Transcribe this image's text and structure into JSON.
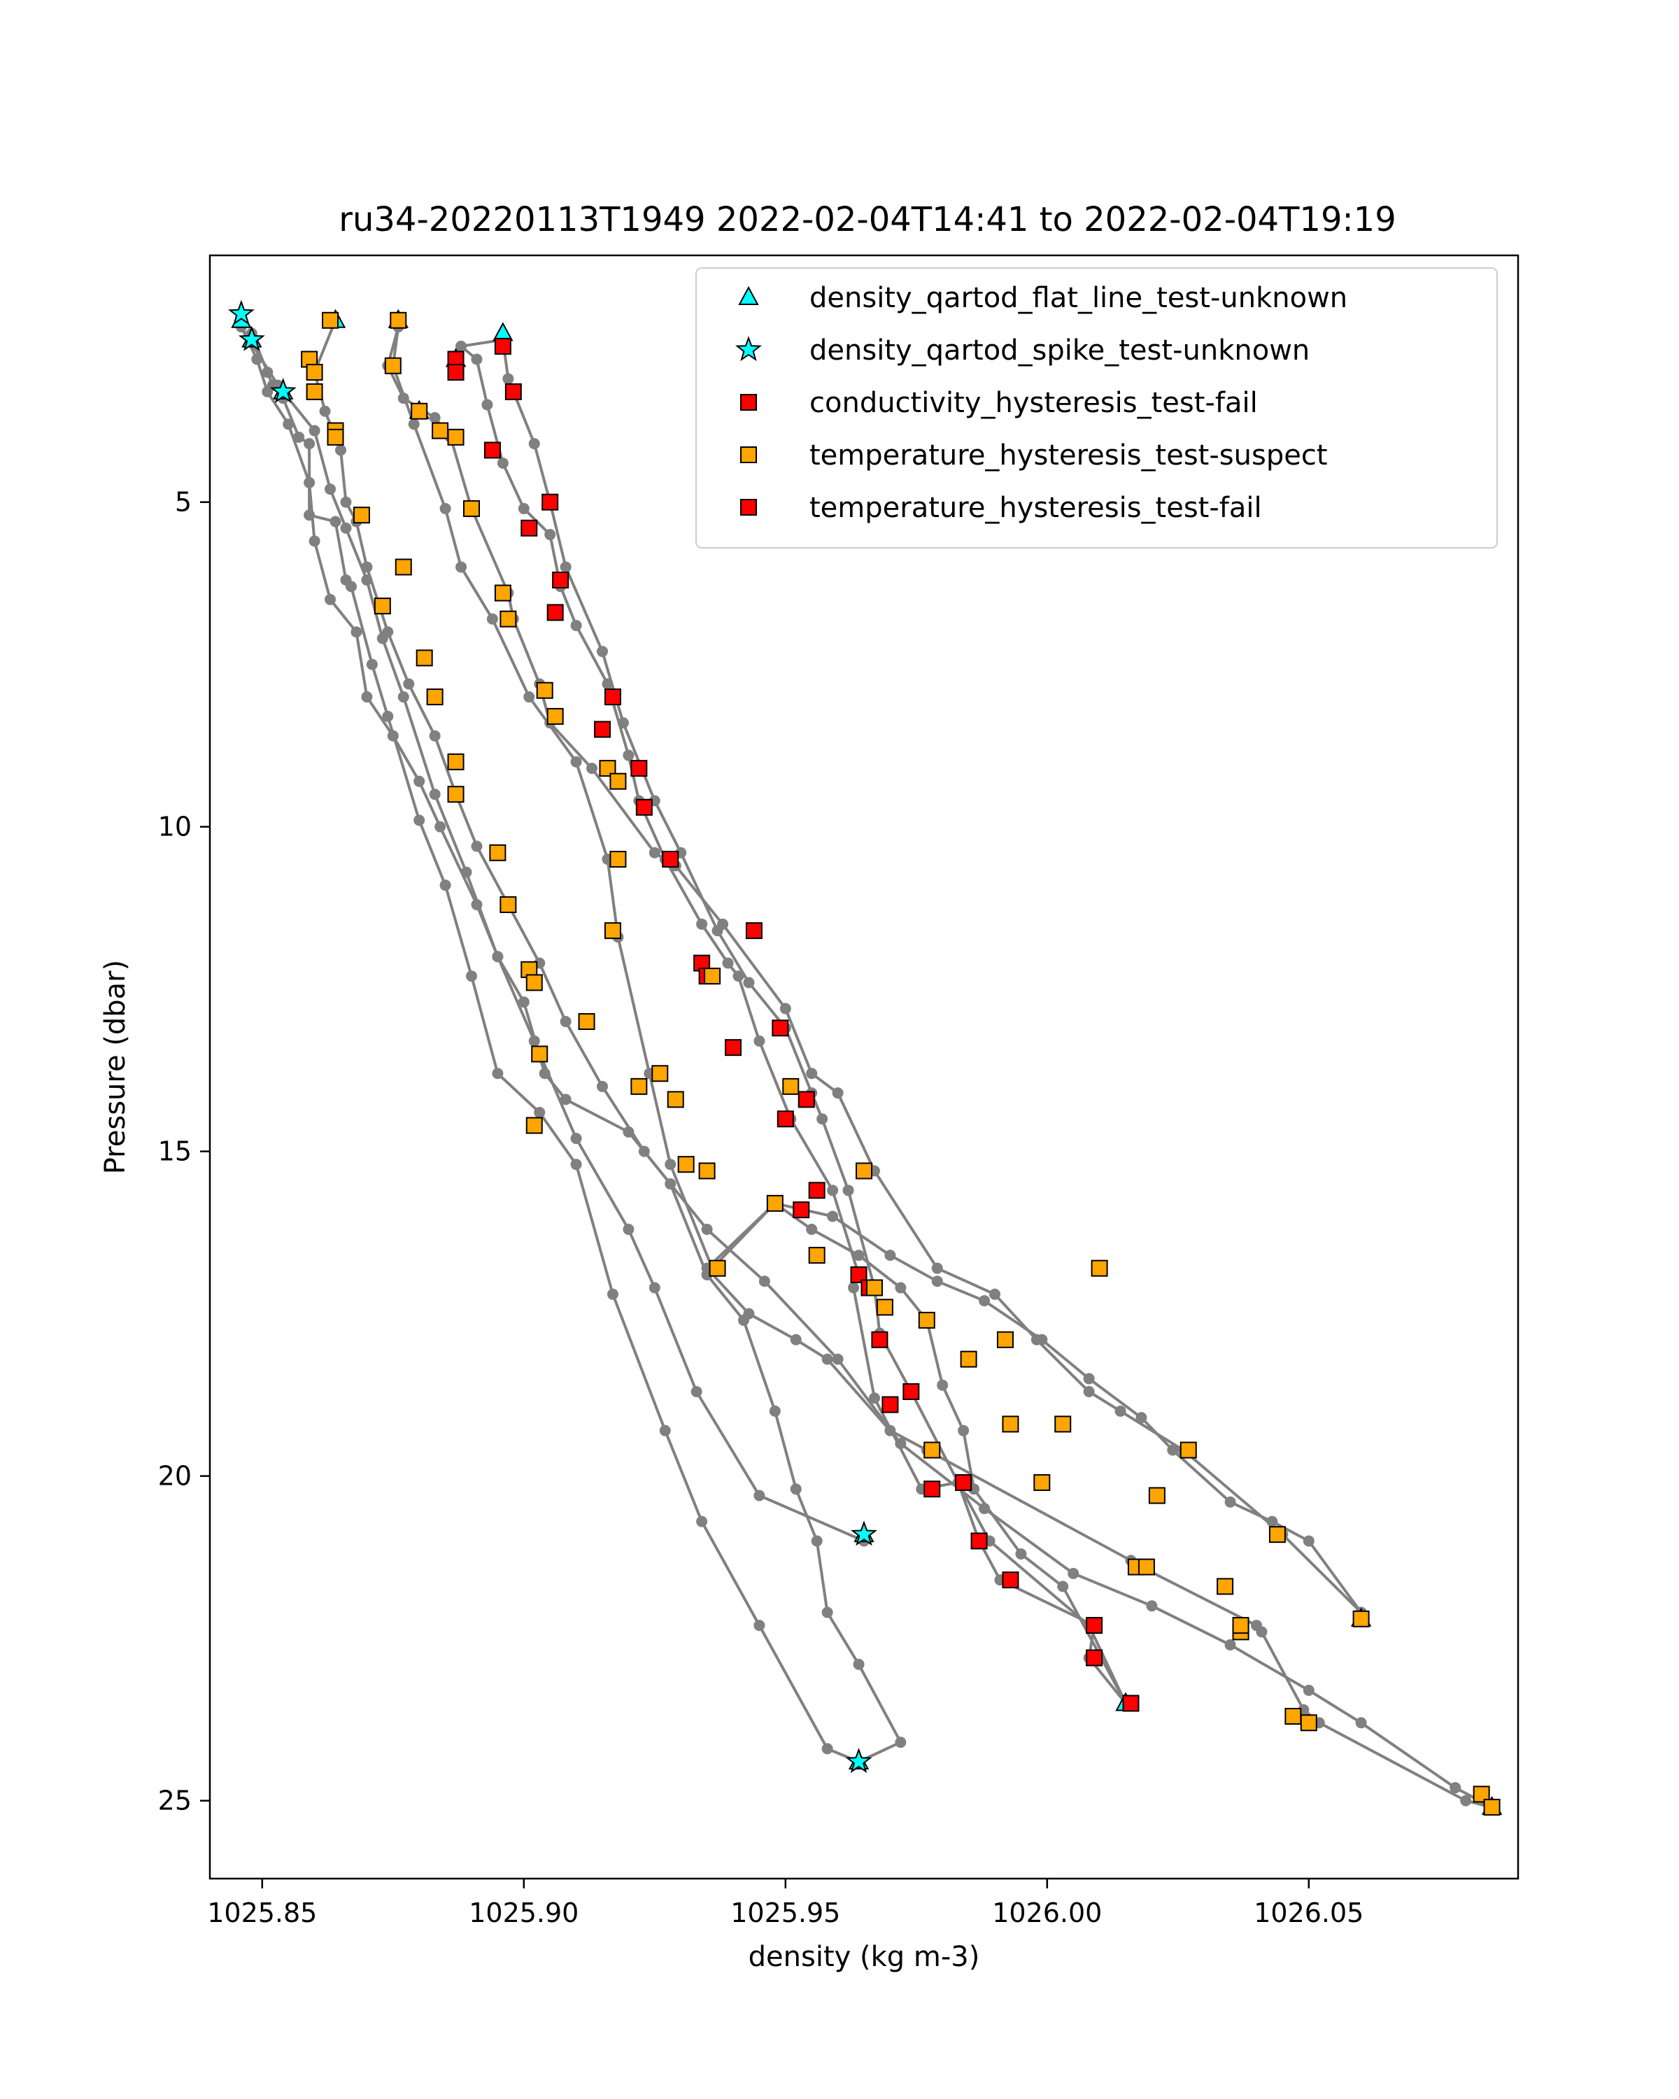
{
  "chart_data": {
    "type": "scatter",
    "title": "ru34-20220113T1949 2022-02-04T14:41 to 2022-02-04T19:19",
    "xlabel": "density (kg m-3)",
    "ylabel": "Pressure (dbar)",
    "xlim": [
      1025.84,
      1026.09
    ],
    "ylim": [
      26.2,
      1.2
    ],
    "y_inverted": true,
    "xticks": [
      1025.85,
      1025.9,
      1025.95,
      1026.0,
      1026.05
    ],
    "xtick_labels": [
      "1025.85",
      "1025.90",
      "1025.95",
      "1026.00",
      "1026.05"
    ],
    "yticks": [
      5,
      10,
      15,
      20,
      25
    ],
    "ytick_labels": [
      "5",
      "10",
      "15",
      "20",
      "25"
    ],
    "grid": false,
    "legend_position": "top-right",
    "line_color": "#808080",
    "profiles": [
      [
        [
          1025.848,
          2.4
        ],
        [
          1025.851,
          3.0
        ],
        [
          1025.852,
          3.2
        ],
        [
          1025.854,
          3.4
        ],
        [
          1025.857,
          4.0
        ],
        [
          1025.859,
          4.1
        ],
        [
          1025.859,
          5.2
        ],
        [
          1025.864,
          5.3
        ],
        [
          1025.866,
          6.2
        ],
        [
          1025.867,
          6.3
        ],
        [
          1025.871,
          7.5
        ],
        [
          1025.874,
          8.3
        ],
        [
          1025.88,
          9.9
        ],
        [
          1025.885,
          10.9
        ],
        [
          1025.89,
          12.3
        ],
        [
          1025.895,
          13.8
        ],
        [
          1025.903,
          14.4
        ],
        [
          1025.91,
          15.2
        ],
        [
          1025.917,
          17.2
        ],
        [
          1025.927,
          19.3
        ],
        [
          1025.934,
          20.7
        ],
        [
          1025.945,
          22.3
        ],
        [
          1025.958,
          24.2
        ],
        [
          1025.964,
          24.4
        ]
      ],
      [
        [
          1025.964,
          24.4
        ],
        [
          1025.972,
          24.1
        ],
        [
          1025.964,
          22.9
        ],
        [
          1025.958,
          22.1
        ],
        [
          1025.956,
          21.0
        ],
        [
          1025.952,
          20.2
        ],
        [
          1025.948,
          19.0
        ],
        [
          1025.942,
          17.6
        ],
        [
          1025.935,
          16.9
        ],
        [
          1025.928,
          15.5
        ],
        [
          1025.92,
          14.7
        ],
        [
          1025.908,
          14.2
        ],
        [
          1025.904,
          13.8
        ],
        [
          1025.9,
          12.7
        ],
        [
          1025.895,
          12.0
        ],
        [
          1025.891,
          11.2
        ],
        [
          1025.884,
          10.0
        ],
        [
          1025.88,
          9.3
        ],
        [
          1025.875,
          8.6
        ],
        [
          1025.87,
          8.0
        ],
        [
          1025.868,
          7.0
        ],
        [
          1025.863,
          6.5
        ],
        [
          1025.86,
          5.6
        ],
        [
          1025.859,
          4.7
        ],
        [
          1025.855,
          3.8
        ],
        [
          1025.851,
          3.3
        ],
        [
          1025.849,
          2.8
        ],
        [
          1025.846,
          2.3
        ]
      ],
      [
        [
          1025.846,
          2.3
        ],
        [
          1025.853,
          3.2
        ],
        [
          1025.86,
          3.9
        ],
        [
          1025.863,
          4.8
        ],
        [
          1025.866,
          5.4
        ],
        [
          1025.87,
          6.2
        ],
        [
          1025.873,
          7.1
        ],
        [
          1025.877,
          8.0
        ],
        [
          1025.883,
          9.5
        ],
        [
          1025.889,
          10.7
        ],
        [
          1025.895,
          12.0
        ],
        [
          1025.902,
          13.3
        ],
        [
          1025.91,
          14.8
        ],
        [
          1025.92,
          16.2
        ],
        [
          1025.925,
          17.1
        ],
        [
          1025.933,
          18.7
        ],
        [
          1025.945,
          20.3
        ],
        [
          1025.965,
          21.0
        ]
      ],
      [
        [
          1025.864,
          2.2
        ],
        [
          1025.86,
          3.0
        ],
        [
          1025.862,
          3.6
        ],
        [
          1025.865,
          4.2
        ],
        [
          1025.866,
          5.0
        ],
        [
          1025.868,
          5.3
        ],
        [
          1025.87,
          6.0
        ],
        [
          1025.874,
          7.0
        ],
        [
          1025.878,
          7.8
        ],
        [
          1025.883,
          8.6
        ],
        [
          1025.887,
          9.5
        ],
        [
          1025.891,
          10.3
        ],
        [
          1025.897,
          11.2
        ],
        [
          1025.903,
          12.1
        ],
        [
          1025.908,
          13.0
        ],
        [
          1025.915,
          14.0
        ],
        [
          1025.923,
          15.0
        ],
        [
          1025.935,
          16.2
        ],
        [
          1025.946,
          17.0
        ],
        [
          1025.96,
          18.2
        ],
        [
          1025.972,
          19.5
        ],
        [
          1025.988,
          20.5
        ],
        [
          1026.005,
          21.5
        ],
        [
          1026.02,
          22.0
        ],
        [
          1026.035,
          22.6
        ],
        [
          1026.05,
          23.3
        ],
        [
          1026.06,
          23.8
        ],
        [
          1026.078,
          24.8
        ],
        [
          1026.085,
          25.1
        ]
      ],
      [
        [
          1026.085,
          25.1
        ],
        [
          1026.08,
          25.0
        ],
        [
          1026.052,
          23.8
        ],
        [
          1026.049,
          23.6
        ],
        [
          1026.041,
          22.4
        ],
        [
          1026.04,
          22.3
        ],
        [
          1026.018,
          21.4
        ],
        [
          1026.016,
          21.3
        ],
        [
          1025.977,
          19.6
        ],
        [
          1025.97,
          19.3
        ],
        [
          1025.958,
          18.2
        ],
        [
          1025.952,
          17.9
        ],
        [
          1025.943,
          17.5
        ],
        [
          1025.935,
          16.8
        ],
        [
          1025.948,
          15.8
        ],
        [
          1025.959,
          16.0
        ],
        [
          1025.97,
          16.6
        ],
        [
          1025.979,
          17.0
        ],
        [
          1025.988,
          17.3
        ],
        [
          1025.999,
          17.9
        ],
        [
          1026.008,
          18.5
        ],
        [
          1026.018,
          19.1
        ],
        [
          1026.024,
          19.6
        ],
        [
          1026.035,
          20.4
        ],
        [
          1026.043,
          20.7
        ],
        [
          1026.05,
          21.0
        ],
        [
          1026.06,
          22.1
        ]
      ],
      [
        [
          1026.06,
          22.1
        ],
        [
          1026.045,
          20.9
        ],
        [
          1026.026,
          19.6
        ],
        [
          1026.014,
          19.0
        ],
        [
          1026.008,
          18.7
        ],
        [
          1025.998,
          17.9
        ],
        [
          1025.99,
          17.2
        ],
        [
          1025.979,
          16.8
        ],
        [
          1025.967,
          15.3
        ],
        [
          1025.96,
          14.1
        ],
        [
          1025.955,
          13.8
        ],
        [
          1025.95,
          12.8
        ],
        [
          1025.938,
          11.5
        ],
        [
          1025.929,
          10.6
        ],
        [
          1025.925,
          10.4
        ],
        [
          1025.913,
          9.1
        ],
        [
          1025.905,
          8.4
        ],
        [
          1025.903,
          7.8
        ],
        [
          1025.898,
          6.8
        ],
        [
          1025.897,
          6.4
        ],
        [
          1025.89,
          5.1
        ],
        [
          1025.886,
          4.0
        ],
        [
          1025.883,
          3.7
        ],
        [
          1025.877,
          3.4
        ],
        [
          1025.874,
          2.9
        ],
        [
          1025.876,
          2.3
        ]
      ],
      [
        [
          1025.876,
          2.3
        ],
        [
          1025.875,
          2.9
        ],
        [
          1025.879,
          3.8
        ],
        [
          1025.885,
          5.1
        ],
        [
          1025.888,
          6.0
        ],
        [
          1025.894,
          6.8
        ],
        [
          1025.901,
          8.0
        ],
        [
          1025.91,
          9.0
        ],
        [
          1025.916,
          10.5
        ],
        [
          1025.918,
          11.7
        ],
        [
          1025.924,
          13.8
        ],
        [
          1025.928,
          15.2
        ],
        [
          1025.936,
          16.8
        ],
        [
          1025.948,
          15.8
        ],
        [
          1025.955,
          16.2
        ],
        [
          1025.964,
          16.6
        ],
        [
          1025.972,
          17.1
        ],
        [
          1025.977,
          17.6
        ],
        [
          1025.98,
          18.6
        ],
        [
          1025.984,
          19.3
        ],
        [
          1025.986,
          20.2
        ],
        [
          1025.995,
          21.2
        ],
        [
          1026.003,
          21.7
        ],
        [
          1026.015,
          23.5
        ]
      ],
      [
        [
          1026.015,
          23.5
        ],
        [
          1026.008,
          22.8
        ],
        [
          1026.009,
          22.3
        ],
        [
          1025.991,
          21.6
        ],
        [
          1025.987,
          21.0
        ],
        [
          1025.983,
          20.1
        ],
        [
          1025.976,
          20.2
        ],
        [
          1025.967,
          18.8
        ],
        [
          1025.963,
          17.1
        ],
        [
          1025.964,
          16.9
        ],
        [
          1025.959,
          15.6
        ],
        [
          1025.951,
          14.5
        ],
        [
          1025.945,
          13.3
        ],
        [
          1025.941,
          12.3
        ],
        [
          1025.939,
          12.1
        ],
        [
          1025.934,
          11.5
        ],
        [
          1025.927,
          10.5
        ],
        [
          1025.922,
          9.6
        ],
        [
          1025.92,
          8.9
        ],
        [
          1025.916,
          7.8
        ],
        [
          1025.91,
          6.9
        ],
        [
          1025.907,
          6.3
        ],
        [
          1025.905,
          5.5
        ],
        [
          1025.9,
          5.1
        ],
        [
          1025.896,
          4.4
        ],
        [
          1025.893,
          3.5
        ],
        [
          1025.891,
          2.8
        ],
        [
          1025.888,
          2.6
        ],
        [
          1025.896,
          2.5
        ]
      ],
      [
        [
          1025.896,
          2.5
        ],
        [
          1025.897,
          3.1
        ],
        [
          1025.902,
          4.1
        ],
        [
          1025.905,
          5.0
        ],
        [
          1025.908,
          6.0
        ],
        [
          1025.915,
          7.3
        ],
        [
          1025.919,
          8.4
        ],
        [
          1025.925,
          9.6
        ],
        [
          1025.93,
          10.4
        ],
        [
          1025.937,
          11.6
        ],
        [
          1025.943,
          12.4
        ],
        [
          1025.95,
          13.1
        ],
        [
          1025.955,
          14.1
        ],
        [
          1025.957,
          14.5
        ],
        [
          1025.962,
          15.6
        ],
        [
          1025.967,
          17.1
        ],
        [
          1025.968,
          17.8
        ],
        [
          1025.974,
          18.7
        ],
        [
          1025.983,
          20.1
        ],
        [
          1025.989,
          21.0
        ],
        [
          1026.008,
          22.3
        ],
        [
          1026.015,
          23.5
        ]
      ]
    ],
    "series": [
      {
        "name": "density_qartod_flat_line_test-unknown",
        "marker": "triangle",
        "color": "#00ffff",
        "x": [
          1025.846,
          1025.848,
          1025.854,
          1025.864,
          1025.876,
          1025.88,
          1025.887,
          1025.896,
          1025.965,
          1025.964,
          1026.015,
          1026.06,
          1026.085
        ],
        "y": [
          2.2,
          2.5,
          3.3,
          2.2,
          2.2,
          3.6,
          2.8,
          2.4,
          20.9,
          24.4,
          23.5,
          22.2,
          25.1
        ]
      },
      {
        "name": "density_qartod_spike_test-unknown",
        "marker": "star",
        "color": "#00ffff",
        "x": [
          1025.846,
          1025.848,
          1025.854,
          1025.964,
          1025.965
        ],
        "y": [
          2.1,
          2.5,
          3.3,
          24.4,
          20.9
        ]
      },
      {
        "name": "conductivity_hysteresis_test-fail",
        "marker": "square",
        "color": "#ff0000",
        "x": [
          1025.896,
          1025.887,
          1025.887,
          1025.898,
          1025.894,
          1025.905,
          1025.901,
          1025.907,
          1025.906,
          1025.917,
          1025.915,
          1025.922,
          1025.923,
          1025.928,
          1025.934,
          1025.935,
          1025.944,
          1025.949,
          1025.94,
          1025.95,
          1025.954,
          1025.956,
          1025.953,
          1025.964,
          1025.966,
          1025.968,
          1025.97,
          1025.974,
          1025.978,
          1025.984,
          1025.987,
          1025.993,
          1026.009,
          1026.009,
          1026.016
        ],
        "y": [
          2.6,
          2.8,
          3.0,
          3.3,
          4.2,
          5.0,
          5.4,
          6.2,
          6.7,
          8.0,
          8.5,
          9.1,
          9.7,
          10.5,
          12.1,
          12.3,
          11.6,
          13.1,
          13.4,
          14.5,
          14.2,
          15.6,
          15.9,
          16.9,
          17.1,
          17.9,
          18.9,
          18.7,
          20.2,
          20.1,
          21.0,
          21.6,
          22.3,
          22.8,
          23.5
        ]
      },
      {
        "name": "temperature_hysteresis_test-suspect",
        "marker": "square",
        "color": "#ffa500",
        "x": [
          1025.863,
          1025.876,
          1025.859,
          1025.86,
          1025.86,
          1025.864,
          1025.864,
          1025.875,
          1025.88,
          1025.884,
          1025.887,
          1025.89,
          1025.869,
          1025.877,
          1025.873,
          1025.881,
          1025.883,
          1025.887,
          1025.887,
          1025.896,
          1025.897,
          1025.895,
          1025.897,
          1025.904,
          1025.906,
          1025.916,
          1025.918,
          1025.918,
          1025.917,
          1025.922,
          1025.926,
          1025.929,
          1025.931,
          1025.935,
          1025.948,
          1025.937,
          1025.936,
          1025.901,
          1025.902,
          1025.903,
          1025.902,
          1025.912,
          1025.951,
          1025.956,
          1025.965,
          1025.967,
          1025.969,
          1025.977,
          1025.978,
          1025.985,
          1025.992,
          1025.993,
          1025.999,
          1026.003,
          1026.01,
          1026.017,
          1026.019,
          1026.021,
          1026.027,
          1026.034,
          1026.037,
          1026.037,
          1026.044,
          1026.047,
          1026.05,
          1026.06,
          1026.083,
          1026.085
        ],
        "y": [
          2.2,
          2.2,
          2.8,
          3.0,
          3.3,
          3.9,
          4.0,
          2.9,
          3.6,
          3.9,
          4.0,
          5.1,
          5.2,
          6.0,
          6.6,
          7.4,
          8.0,
          9.0,
          9.5,
          6.4,
          6.8,
          10.4,
          11.2,
          7.9,
          8.3,
          9.1,
          9.3,
          10.5,
          11.6,
          14.0,
          13.8,
          14.2,
          15.2,
          15.3,
          15.8,
          16.8,
          12.3,
          12.2,
          12.4,
          13.5,
          14.6,
          13.0,
          14.0,
          16.6,
          15.3,
          17.1,
          17.4,
          17.6,
          19.6,
          18.2,
          17.9,
          19.2,
          20.1,
          19.2,
          16.8,
          21.4,
          21.4,
          20.3,
          19.6,
          21.7,
          22.4,
          22.3,
          20.9,
          23.7,
          23.8,
          22.2,
          24.9,
          25.1
        ]
      },
      {
        "name": "temperature_hysteresis_test-fail",
        "marker": "square",
        "color": "#ff0000",
        "x": [],
        "y": []
      }
    ]
  }
}
